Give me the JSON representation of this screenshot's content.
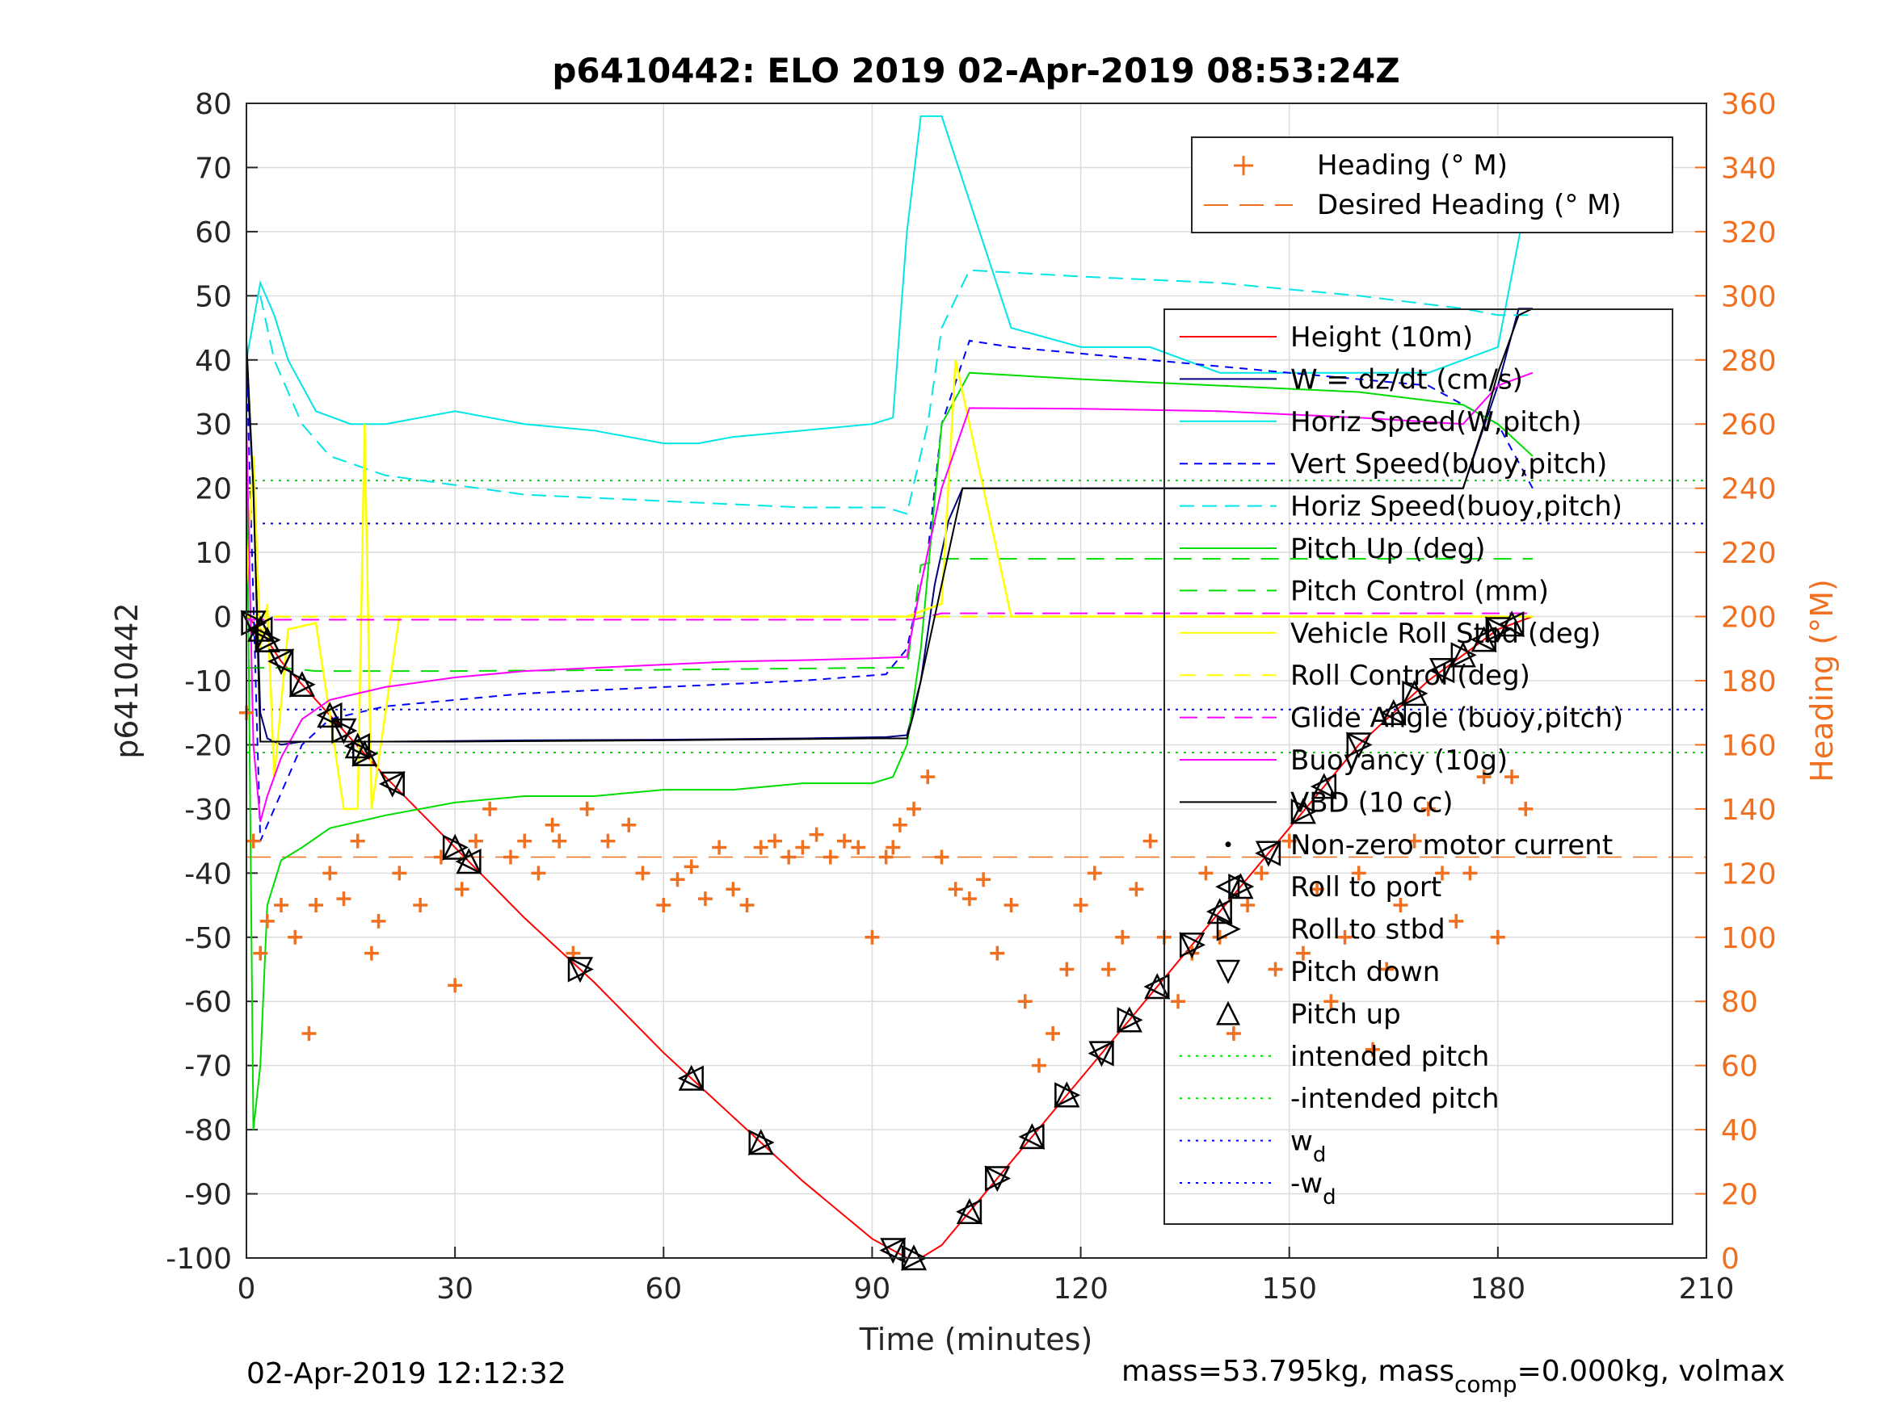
{
  "chart_data": {
    "type": "line",
    "title": "p6410442: ELO 2019 02-Apr-2019 08:53:24Z",
    "xlabel": "Time (minutes)",
    "ylabel": "p6410442",
    "y2label": "Heading (°M)",
    "xlim": [
      0,
      210
    ],
    "ylim": [
      -100,
      80
    ],
    "y2lim": [
      0,
      360
    ],
    "xticks": [
      0,
      30,
      60,
      90,
      120,
      150,
      180,
      210
    ],
    "yticks": [
      80,
      70,
      60,
      50,
      40,
      30,
      20,
      10,
      0,
      -10,
      -20,
      -30,
      -40,
      -50,
      -60,
      -70,
      -80,
      -90,
      -100
    ],
    "y2ticks": [
      360,
      340,
      320,
      300,
      280,
      260,
      240,
      220,
      200,
      180,
      160,
      140,
      120,
      100,
      80,
      60,
      40,
      20,
      0
    ],
    "grid": true,
    "footer_left": "02-Apr-2019 12:12:32",
    "footer_right": "mass=53.795kg, mass",
    "footer_right_sub": "comp",
    "footer_right_tail": "=0.000kg, volmax",
    "legend_heading": [
      {
        "label": "Heading (° M)",
        "color": "#f07020"
      },
      {
        "label": "Desired Heading (° M)",
        "color": "#f07020"
      }
    ],
    "legend_main": [
      {
        "label": "Height (10m)",
        "color": "#ff0000"
      },
      {
        "label": "W = dz/dt (cm/s)",
        "color": "#000080"
      },
      {
        "label": "Horiz Speed(W,pitch)",
        "color": "#00e6e6"
      },
      {
        "label": "Vert Speed(buoy,pitch)",
        "color": "#0000ff"
      },
      {
        "label": "Horiz Speed(buoy,pitch)",
        "color": "#00e6e6"
      },
      {
        "label": "Pitch Up (deg)",
        "color": "#00dd00"
      },
      {
        "label": "Pitch Control (mm)",
        "color": "#00dd00"
      },
      {
        "label": "Vehicle Roll Stbd (deg)",
        "color": "#ffff00"
      },
      {
        "label": "Roll Control (deg)",
        "color": "#ffff00"
      },
      {
        "label": "Glide Angle (buoy,pitch)",
        "color": "#ff00ff"
      },
      {
        "label": "Buoyancy (10g)",
        "color": "#ff00ff"
      },
      {
        "label": "VBD (10 cc)",
        "color": "#000000"
      },
      {
        "label": "Non-zero motor current",
        "color": "#000000"
      },
      {
        "label": "Roll to port",
        "color": "#000000"
      },
      {
        "label": "Roll to stbd",
        "color": "#000000"
      },
      {
        "label": "Pitch down",
        "color": "#000000"
      },
      {
        "label": "Pitch up",
        "color": "#000000"
      },
      {
        "label": "intended pitch",
        "color": "#00dd00"
      },
      {
        "label": "-intended pitch",
        "color": "#00dd00"
      },
      {
        "label": "w",
        "sub": "d",
        "color": "#0000ff"
      },
      {
        "label": "-w",
        "sub": "d",
        "color": "#0000ff"
      }
    ],
    "reference_lines": {
      "intended_pitch": 21.2,
      "neg_intended_pitch": -21.2,
      "w_d": 14.5,
      "neg_w_d": -14.5,
      "desired_heading": 125
    },
    "series": [
      {
        "name": "Height (10m)",
        "color": "#ff0000",
        "dash": "",
        "axis": "left",
        "x": [
          0,
          2,
          5,
          10,
          20,
          30,
          40,
          50,
          60,
          70,
          80,
          90,
          95,
          97,
          100,
          110,
          120,
          130,
          140,
          150,
          160,
          170,
          180,
          185
        ],
        "y": [
          0,
          -2,
          -7,
          -13,
          -25,
          -36,
          -47,
          -57,
          -68,
          -78,
          -88,
          -97,
          -100,
          -100,
          -98,
          -85,
          -72,
          -59,
          -46,
          -33,
          -20,
          -10,
          -2,
          0
        ]
      },
      {
        "name": "W = dz/dt (cm/s)",
        "color": "#000080",
        "dash": "",
        "axis": "left",
        "x": [
          0,
          1,
          2,
          3,
          5,
          8,
          12,
          20,
          40,
          60,
          80,
          92,
          95,
          97,
          99,
          101,
          103,
          110,
          130,
          150,
          165,
          175,
          180,
          183,
          185
        ],
        "y": [
          40,
          20,
          -15,
          -19,
          -20,
          -19.5,
          -19.5,
          -19.5,
          -19.3,
          -19.2,
          -19,
          -18.8,
          -18.5,
          -10,
          5,
          15,
          20,
          20,
          20,
          20,
          20,
          20,
          36,
          48,
          48
        ]
      },
      {
        "name": "Horiz Speed(W,pitch)",
        "color": "#00e6e6",
        "dash": "",
        "axis": "left",
        "x": [
          0,
          2,
          4,
          6,
          8,
          10,
          15,
          20,
          30,
          40,
          50,
          60,
          65,
          70,
          80,
          90,
          93,
          95,
          97,
          100,
          110,
          120,
          130,
          140,
          150,
          160,
          170,
          180,
          185
        ],
        "y": [
          40,
          52,
          47,
          40,
          36,
          32,
          30,
          30,
          32,
          30,
          29,
          27,
          27,
          28,
          29,
          30,
          31,
          60,
          78,
          78,
          45,
          42,
          42,
          38,
          38,
          38,
          38,
          42,
          70
        ]
      },
      {
        "name": "Vert Speed(buoy,pitch)",
        "color": "#0000ff",
        "dash": "10,8",
        "axis": "left",
        "x": [
          0,
          2,
          4,
          8,
          12,
          20,
          40,
          60,
          80,
          92,
          95,
          98,
          100,
          104,
          110,
          130,
          150,
          170,
          180,
          185
        ],
        "y": [
          40,
          -35,
          -30,
          -20,
          -16,
          -14,
          -12,
          -11,
          -10,
          -9,
          -5,
          10,
          30,
          43,
          42,
          40,
          38,
          36,
          30,
          20
        ]
      },
      {
        "name": "Horiz Speed(buoy,pitch)",
        "color": "#00e6e6",
        "dash": "18,10",
        "axis": "left",
        "x": [
          2,
          4,
          8,
          12,
          20,
          40,
          60,
          80,
          92,
          95,
          98,
          100,
          104,
          120,
          140,
          160,
          175,
          180,
          185
        ],
        "y": [
          50,
          40,
          30,
          25,
          22,
          19,
          18,
          17,
          17,
          16,
          30,
          45,
          54,
          53,
          52,
          50,
          48,
          47,
          47
        ]
      },
      {
        "name": "Pitch Up (deg)",
        "color": "#00dd00",
        "dash": "",
        "axis": "left",
        "x": [
          0,
          1,
          2,
          3,
          5,
          8,
          12,
          20,
          30,
          40,
          50,
          60,
          70,
          80,
          90,
          93,
          95,
          97,
          100,
          104,
          120,
          140,
          160,
          175,
          180,
          185
        ],
        "y": [
          30,
          -80,
          -70,
          -45,
          -38,
          -36,
          -33,
          -31,
          -29,
          -28,
          -28,
          -27,
          -27,
          -26,
          -26,
          -25,
          -20,
          -5,
          30,
          38,
          37,
          36,
          35,
          33,
          30,
          25
        ]
      },
      {
        "name": "Pitch Control (mm)",
        "color": "#00dd00",
        "dash": "22,14",
        "axis": "left",
        "x": [
          0,
          5,
          10,
          30,
          60,
          90,
          95,
          97,
          100,
          120,
          150,
          180,
          185
        ],
        "y": [
          -8,
          -8,
          -8.5,
          -8.5,
          -8.3,
          -8,
          -8,
          8,
          9,
          9,
          9,
          9,
          9
        ]
      },
      {
        "name": "Vehicle Roll Stbd (deg)",
        "color": "#ffff00",
        "dash": "",
        "axis": "left",
        "x": [
          0,
          1,
          2,
          3,
          4,
          6,
          10,
          14,
          16,
          17,
          18,
          22,
          30,
          40,
          50,
          60,
          70,
          80,
          90,
          95,
          100,
          102,
          110,
          130,
          150,
          170,
          185
        ],
        "y": [
          5,
          25,
          -5,
          2,
          -25,
          -2,
          -1,
          -30,
          -30,
          30,
          -30,
          0,
          0,
          0,
          0,
          0,
          0,
          0,
          0,
          0,
          2,
          40,
          0,
          0,
          0,
          0,
          0
        ]
      },
      {
        "name": "Roll Control (deg)",
        "color": "#ffff00",
        "dash": "20,14",
        "axis": "left",
        "x": [
          0,
          50,
          100,
          150,
          185
        ],
        "y": [
          0,
          0,
          0,
          0,
          0
        ]
      },
      {
        "name": "Glide Angle (buoy,pitch)",
        "color": "#ff00ff",
        "dash": "22,12",
        "axis": "left",
        "x": [
          0,
          50,
          96,
          100,
          150,
          185
        ],
        "y": [
          -0.5,
          -0.5,
          -0.5,
          0.5,
          0.5,
          0.5
        ]
      },
      {
        "name": "Buoyancy (10g)",
        "color": "#ff00ff",
        "dash": "",
        "axis": "left",
        "x": [
          0,
          1,
          2,
          3,
          5,
          8,
          12,
          20,
          30,
          40,
          50,
          60,
          70,
          80,
          90,
          95,
          97,
          100,
          104,
          120,
          140,
          160,
          175,
          180,
          185
        ],
        "y": [
          30,
          -20,
          -32,
          -28,
          -22,
          -16,
          -13,
          -11,
          -9.5,
          -8.5,
          -8,
          -7.5,
          -7,
          -6.8,
          -6.5,
          -6.3,
          5,
          20,
          32.5,
          32.4,
          32,
          31,
          30,
          36,
          38
        ]
      },
      {
        "name": "VBD (10 cc)",
        "color": "#000000",
        "dash": "",
        "axis": "left",
        "x": [
          0,
          1,
          2,
          3,
          10,
          30,
          60,
          90,
          95,
          96,
          100,
          103,
          120,
          150,
          175,
          178,
          180,
          183,
          185
        ],
        "y": [
          43,
          20,
          -19.5,
          -19.5,
          -19.5,
          -19.5,
          -19.3,
          -19,
          -19,
          -15,
          5,
          20,
          20,
          20,
          20,
          30,
          38,
          47,
          48
        ]
      },
      {
        "name": "Heading (° M)",
        "color": "#f07020",
        "marker": "plus",
        "axis": "right",
        "x": [
          0,
          1,
          2,
          3,
          5,
          7,
          9,
          10,
          12,
          14,
          16,
          18,
          19,
          22,
          25,
          28,
          30,
          31,
          33,
          35,
          38,
          40,
          42,
          44,
          45,
          47,
          49,
          52,
          55,
          57,
          60,
          62,
          64,
          66,
          68,
          70,
          72,
          74,
          76,
          78,
          80,
          82,
          84,
          86,
          88,
          90,
          92,
          93,
          94,
          96,
          98,
          100,
          102,
          104,
          106,
          108,
          110,
          112,
          114,
          116,
          118,
          120,
          122,
          124,
          126,
          128,
          130,
          132,
          134,
          136,
          138,
          140,
          142,
          144,
          146,
          148,
          150,
          152,
          154,
          156,
          158,
          160,
          162,
          164,
          166,
          168,
          170,
          172,
          174,
          176,
          178,
          180,
          182,
          184
        ],
        "y": [
          170,
          130,
          95,
          105,
          110,
          100,
          70,
          110,
          120,
          112,
          130,
          95,
          105,
          120,
          110,
          125,
          85,
          115,
          130,
          140,
          125,
          130,
          120,
          135,
          130,
          95,
          140,
          130,
          135,
          120,
          110,
          118,
          122,
          112,
          128,
          115,
          110,
          128,
          130,
          125,
          128,
          132,
          125,
          130,
          128,
          100,
          125,
          128,
          135,
          140,
          150,
          125,
          115,
          112,
          118,
          95,
          110,
          80,
          60,
          70,
          90,
          110,
          120,
          90,
          100,
          115,
          130,
          100,
          80,
          95,
          120,
          100,
          70,
          110,
          120,
          90,
          130,
          95,
          115,
          80,
          100,
          120,
          65,
          90,
          110,
          130,
          140,
          120,
          105,
          120,
          150,
          100,
          150,
          140
        ]
      }
    ]
  }
}
